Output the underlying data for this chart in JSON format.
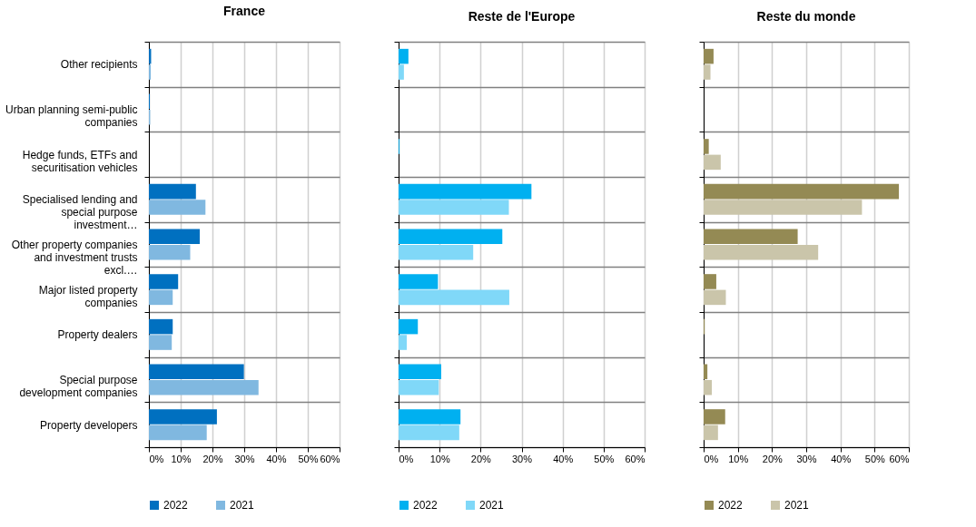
{
  "chart_data": [
    {
      "type": "bar",
      "orientation": "horizontal",
      "title": "France",
      "categories": [
        "Other recipients",
        "Urban planning semi-public companies",
        "Hedge funds, ETFs and securitisation vehicles",
        "Specialised lending and special purpose investment…",
        "Other property companies and investment trusts excl.…",
        "Major listed property companies",
        "Property dealers",
        "Special purpose development companies",
        "Property developers"
      ],
      "series": [
        {
          "name": "2022",
          "color": "#0070c0",
          "values": [
            0.7,
            0.3,
            0,
            14.8,
            16.0,
            9.2,
            7.5,
            29.9,
            21.4
          ]
        },
        {
          "name": "2021",
          "color": "#80b8e0",
          "values": [
            0.6,
            0.4,
            0,
            17.8,
            13.0,
            7.5,
            7.2,
            34.5,
            18.2
          ]
        }
      ],
      "xlim": [
        0,
        60
      ],
      "xticks": [
        {
          "value": 0,
          "label": "0%"
        },
        {
          "value": 10,
          "label": "10%"
        },
        {
          "value": 20,
          "label": "20%"
        },
        {
          "value": 30,
          "label": "30%"
        },
        {
          "value": 40,
          "label": "40%"
        },
        {
          "value": 50,
          "label": "50%"
        },
        {
          "value": 60,
          "label": "60%"
        }
      ],
      "grid": true,
      "legend": "bottom"
    },
    {
      "type": "bar",
      "orientation": "horizontal",
      "title": "Reste de l'Europe",
      "categories": [
        null,
        null,
        null,
        null,
        null,
        null,
        null,
        null,
        null
      ],
      "series": [
        {
          "name": "2022",
          "color": "#00b0f0",
          "values": [
            2.4,
            0,
            0.2,
            32.4,
            25.3,
            9.6,
            4.7,
            10.4,
            15.1
          ]
        },
        {
          "name": "2021",
          "color": "#80d8f8",
          "values": [
            1.3,
            0,
            0,
            26.9,
            18.2,
            27.0,
            2.0,
            9.8,
            14.8
          ]
        }
      ],
      "xlim": [
        0,
        60
      ],
      "xticks": [
        {
          "value": 0,
          "label": "0%"
        },
        {
          "value": 10,
          "label": "10%"
        },
        {
          "value": 20,
          "label": "20%"
        },
        {
          "value": 30,
          "label": "30%"
        },
        {
          "value": 40,
          "label": "40%"
        },
        {
          "value": 50,
          "label": "50%"
        },
        {
          "value": 60,
          "label": "60%"
        }
      ],
      "grid": true,
      "legend": "bottom",
      "tick_labels": "x"
    },
    {
      "type": "bar",
      "orientation": "horizontal",
      "title": "Reste du monde",
      "categories": [
        null,
        null,
        null,
        null,
        null,
        null,
        null,
        null,
        null
      ],
      "series": [
        {
          "name": "2022",
          "color": "#948a54",
          "values": [
            2.9,
            0,
            1.5,
            57.1,
            27.5,
            3.7,
            0.3,
            1.1,
            6.3
          ]
        },
        {
          "name": "2021",
          "color": "#cac5aa",
          "values": [
            2.0,
            0,
            5.0,
            46.3,
            33.5,
            6.5,
            0,
            2.4,
            4.2
          ]
        }
      ],
      "xlim": [
        0,
        60
      ],
      "xticks": [
        {
          "value": 0,
          "label": "0%"
        },
        {
          "value": 10,
          "label": "10%"
        },
        {
          "value": 20,
          "label": "20%"
        },
        {
          "value": 30,
          "label": "30%"
        },
        {
          "value": 40,
          "label": "40%"
        },
        {
          "value": 50,
          "label": "50%"
        },
        {
          "value": 60,
          "label": "60%"
        }
      ],
      "grid": true,
      "legend": "bottom",
      "tick_labels": "x"
    }
  ]
}
